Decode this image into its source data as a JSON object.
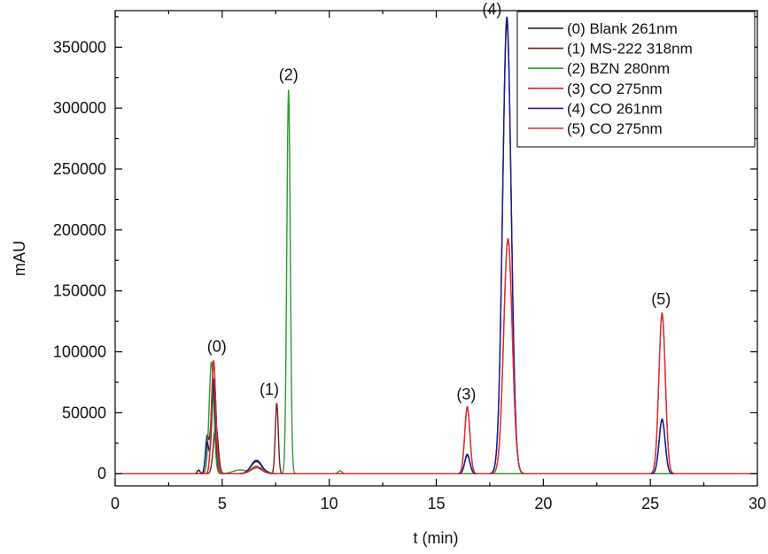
{
  "chart_data": {
    "type": "line",
    "xlabel": "t (min)",
    "ylabel": "mAU",
    "xlim": [
      0,
      30
    ],
    "ylim": [
      -10000,
      380000
    ],
    "x_ticks": [
      0,
      5,
      10,
      15,
      20,
      25,
      30
    ],
    "y_ticks": [
      0,
      50000,
      100000,
      150000,
      200000,
      250000,
      300000,
      350000
    ],
    "grid": false,
    "legend_position": "top-right",
    "series": [
      {
        "name": "(0) Blank 261nm",
        "color": "#1a1a1a",
        "peaks": [
          [
            3.9,
            3000,
            0.06
          ],
          [
            4.3,
            30000,
            0.08
          ],
          [
            4.58,
            75000,
            0.1
          ],
          [
            6.6,
            10000,
            0.25
          ],
          [
            16.45,
            15000,
            0.12
          ],
          [
            18.3,
            370000,
            0.2
          ],
          [
            25.55,
            44000,
            0.14
          ]
        ]
      },
      {
        "name": "(1) MS-222 318nm",
        "color": "#7a1a1a",
        "peaks": [
          [
            4.7,
            40000,
            0.11
          ],
          [
            6.6,
            5000,
            0.25
          ],
          [
            7.55,
            58000,
            0.07
          ]
        ]
      },
      {
        "name": "(2) BZN 280nm",
        "color": "#2e9a2e",
        "peaks": [
          [
            4.5,
            92000,
            0.11
          ],
          [
            5.8,
            3000,
            0.3
          ],
          [
            6.7,
            5000,
            0.3
          ],
          [
            8.1,
            315000,
            0.08
          ],
          [
            10.5,
            2500,
            0.08
          ]
        ]
      },
      {
        "name": "(3) CO 275nm",
        "color": "#d42020",
        "peaks": [
          [
            4.6,
            93000,
            0.1
          ],
          [
            6.6,
            6000,
            0.25
          ],
          [
            16.45,
            55000,
            0.12
          ],
          [
            18.35,
            192000,
            0.2
          ],
          [
            25.55,
            131000,
            0.15
          ]
        ]
      },
      {
        "name": "(4) CO 261nm",
        "color": "#1a1a9a",
        "peaks": [
          [
            4.3,
            25000,
            0.08
          ],
          [
            4.62,
            78000,
            0.1
          ],
          [
            6.6,
            11000,
            0.25
          ],
          [
            16.45,
            16000,
            0.12
          ],
          [
            18.3,
            375000,
            0.2
          ],
          [
            25.55,
            45000,
            0.14
          ]
        ]
      },
      {
        "name": "(5) CO 275nm",
        "color": "#e03030",
        "peaks": [
          [
            4.6,
            90000,
            0.1
          ],
          [
            6.6,
            6000,
            0.25
          ],
          [
            16.45,
            54000,
            0.12
          ],
          [
            18.35,
            193000,
            0.2
          ],
          [
            25.55,
            132000,
            0.15
          ]
        ]
      }
    ],
    "annotations": [
      {
        "text": "(0)",
        "x": 4.75,
        "y": 97000
      },
      {
        "text": "(1)",
        "x": 7.2,
        "y": 62000
      },
      {
        "text": "(2)",
        "x": 8.1,
        "y": 320000
      },
      {
        "text": "(3)",
        "x": 16.4,
        "y": 58000
      },
      {
        "text": "(4)",
        "x": 17.6,
        "y": 374000
      },
      {
        "text": "(5)",
        "x": 25.5,
        "y": 136000
      }
    ]
  }
}
